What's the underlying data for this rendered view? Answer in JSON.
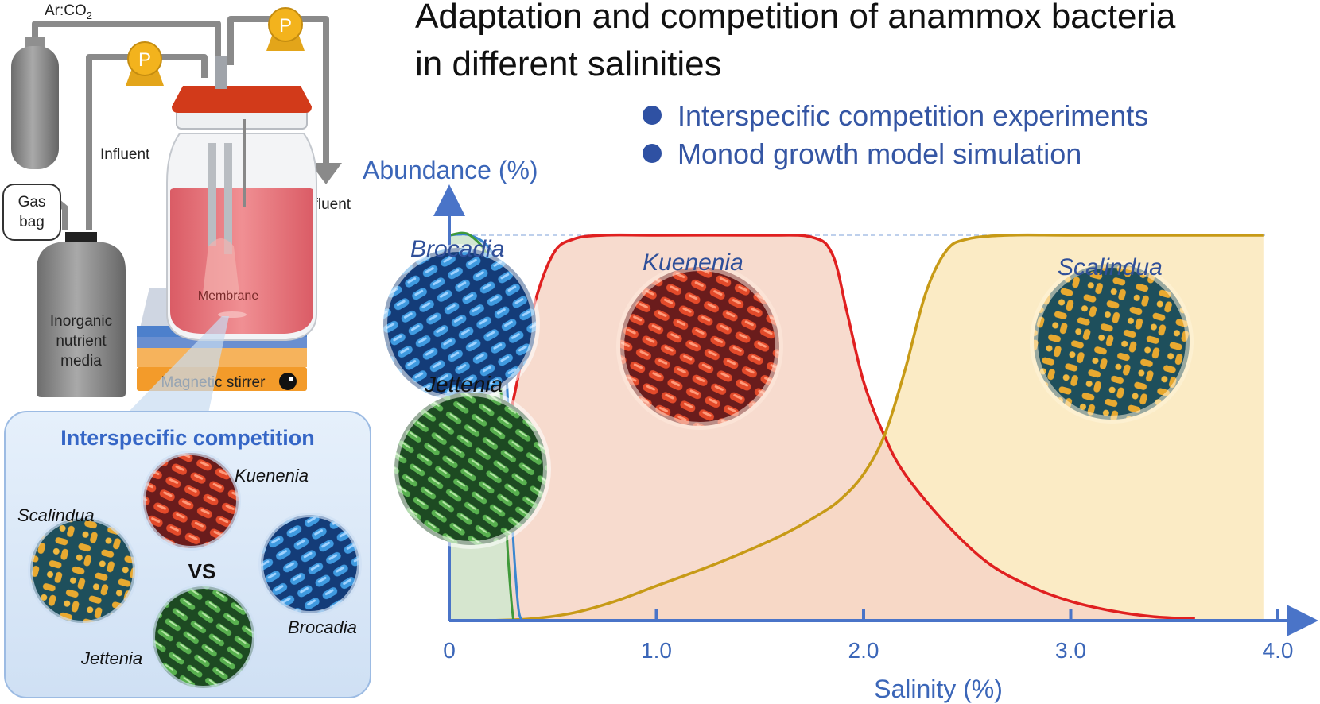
{
  "title": {
    "line1": "Adaptation and competition of anammox bacteria",
    "line2": "in different salinities"
  },
  "bullets": [
    "Interspecific competition experiments",
    "Monod growth model simulation"
  ],
  "setup": {
    "gas_label": "Ar:CO",
    "gas_subscript": "2",
    "pump_label": "P",
    "influent": "Influent",
    "effluent": "Effluent",
    "gas_bag_line1": "Gas",
    "gas_bag_line2": "bag",
    "nutrient_line1": "Inorganic",
    "nutrient_line2": "nutrient",
    "nutrient_line3": "media",
    "membrane": "Membrane",
    "stirrer": "Magnetic stirrer"
  },
  "competition": {
    "title": "Interspecific competition",
    "vs": "VS",
    "species": [
      "Kuenenia",
      "Scalindua",
      "Brocadia",
      "Jettenia"
    ]
  },
  "colors": {
    "kuenenia": "#e02020",
    "scalindua": "#c79a16",
    "brocadia": "#3a86d0",
    "jettenia": "#3f9a3a",
    "axis": "#4a74c8"
  },
  "chart_data": {
    "type": "line",
    "xlabel": "Salinity (%)",
    "ylabel": "Abundance (%)",
    "x_ticks": [
      "0",
      "1.0",
      "2.0",
      "3.0",
      "4.0"
    ],
    "xlim": [
      0,
      4.0
    ],
    "ylim": [
      0,
      100
    ],
    "series": [
      {
        "name": "Kuenenia",
        "color": "#e02020",
        "points": [
          [
            0,
            22
          ],
          [
            0.1,
            25
          ],
          [
            0.2,
            33
          ],
          [
            0.3,
            55
          ],
          [
            0.4,
            80
          ],
          [
            0.5,
            95
          ],
          [
            0.6,
            99
          ],
          [
            0.75,
            100
          ],
          [
            1.0,
            100
          ],
          [
            1.5,
            100
          ],
          [
            1.75,
            99.5
          ],
          [
            1.85,
            95
          ],
          [
            1.92,
            80
          ],
          [
            2.0,
            62
          ],
          [
            2.1,
            48
          ],
          [
            2.2,
            38
          ],
          [
            2.4,
            25
          ],
          [
            2.6,
            15
          ],
          [
            2.8,
            9
          ],
          [
            3.0,
            5
          ],
          [
            3.2,
            2.5
          ],
          [
            3.4,
            1
          ],
          [
            3.6,
            0.5
          ]
        ]
      },
      {
        "name": "Scalindua",
        "color": "#c79a16",
        "points": [
          [
            0.2,
            0
          ],
          [
            0.4,
            0.5
          ],
          [
            0.6,
            2
          ],
          [
            0.8,
            5
          ],
          [
            1.0,
            9
          ],
          [
            1.3,
            15
          ],
          [
            1.6,
            22
          ],
          [
            1.8,
            28
          ],
          [
            1.9,
            32
          ],
          [
            2.0,
            38
          ],
          [
            2.1,
            48
          ],
          [
            2.2,
            65
          ],
          [
            2.3,
            85
          ],
          [
            2.4,
            96
          ],
          [
            2.5,
            99
          ],
          [
            2.7,
            100
          ],
          [
            3.0,
            100
          ],
          [
            3.5,
            100
          ],
          [
            3.93,
            100
          ]
        ]
      },
      {
        "name": "Brocadia",
        "color": "#3a86d0",
        "points": [
          [
            0,
            100
          ],
          [
            0.1,
            100
          ],
          [
            0.2,
            96
          ],
          [
            0.25,
            85
          ],
          [
            0.28,
            60
          ],
          [
            0.3,
            30
          ],
          [
            0.33,
            5
          ],
          [
            0.35,
            0
          ]
        ]
      },
      {
        "name": "Jettenia",
        "color": "#3f9a3a",
        "points": [
          [
            0,
            100
          ],
          [
            0.1,
            100
          ],
          [
            0.2,
            92
          ],
          [
            0.24,
            70
          ],
          [
            0.26,
            45
          ],
          [
            0.28,
            20
          ],
          [
            0.3,
            5
          ],
          [
            0.31,
            0
          ]
        ]
      }
    ],
    "species_labels": [
      "Brocadia",
      "Jettenia",
      "Kuenenia",
      "Scalindua"
    ]
  }
}
